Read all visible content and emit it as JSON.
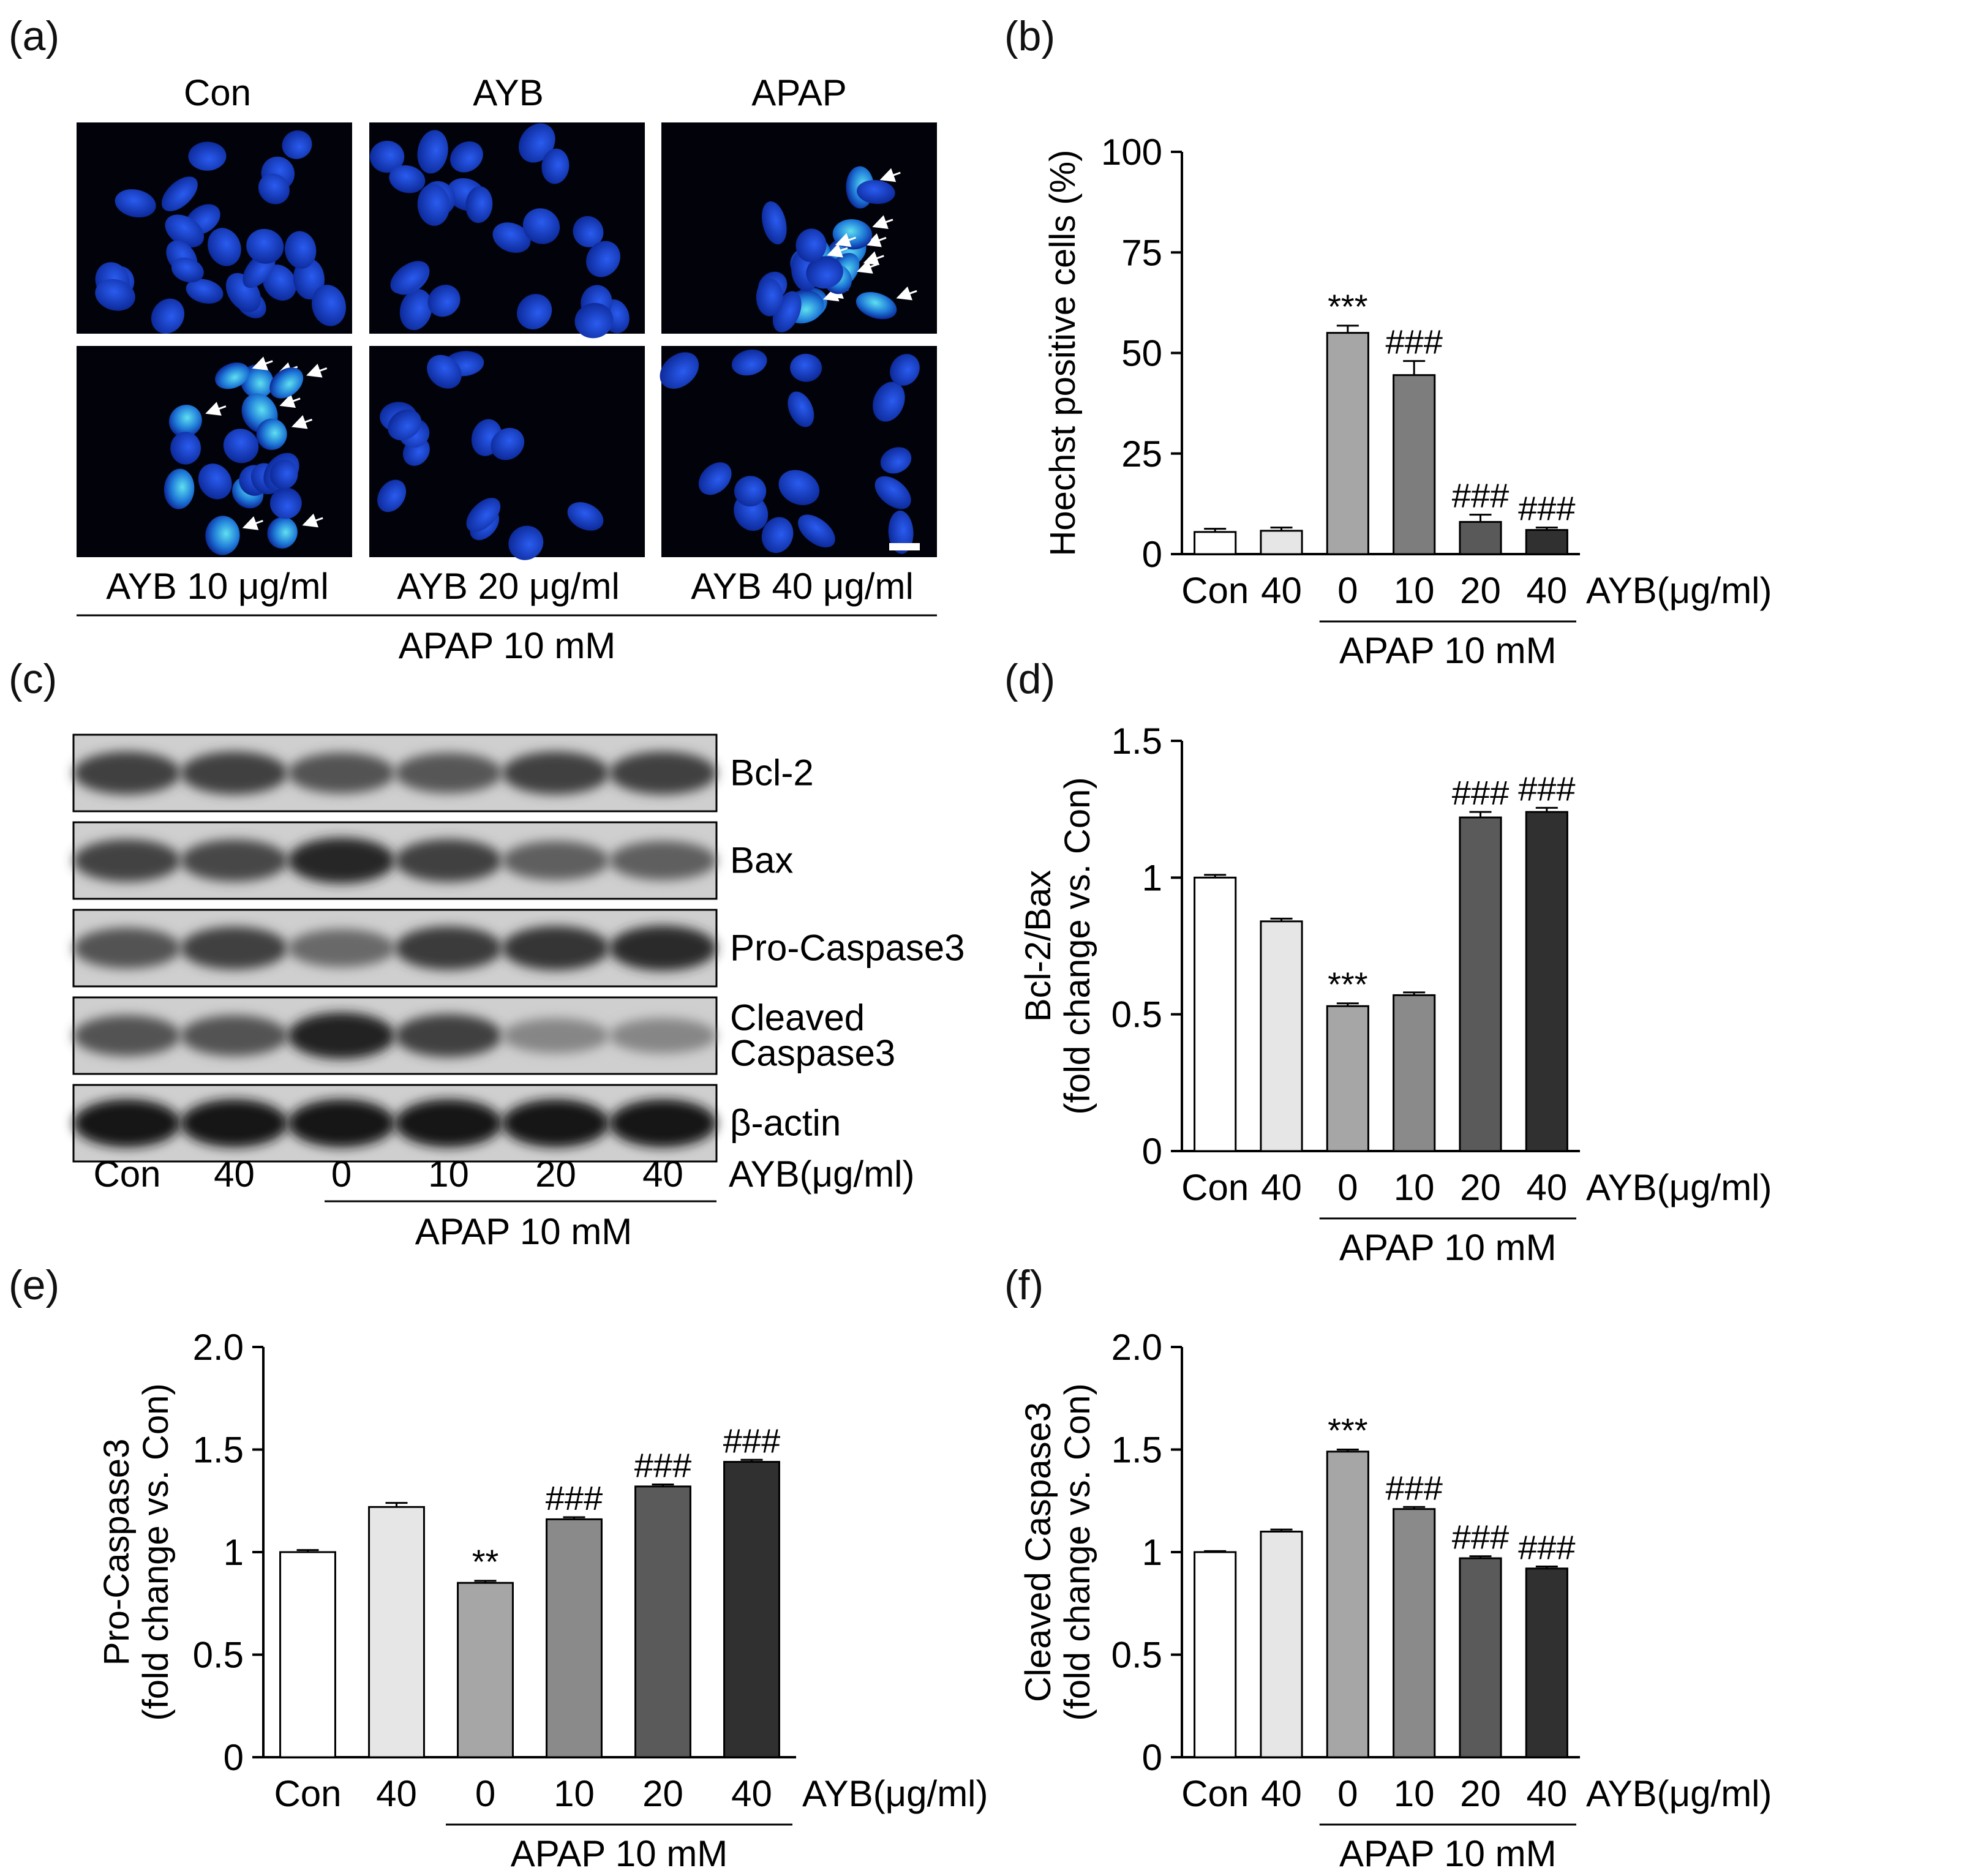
{
  "panel_labels": {
    "a": "(a)",
    "b": "(b)",
    "c": "(c)",
    "d": "(d)",
    "e": "(e)",
    "f": "(f)"
  },
  "panel_a": {
    "top_labels": [
      "Con",
      "AYB",
      "APAP"
    ],
    "bottom_labels": [
      "AYB 10 μg/ml",
      "AYB 20 μg/ml",
      "AYB 40 μg/ml"
    ],
    "group_label": "APAP 10 mM"
  },
  "panel_c": {
    "proteins": [
      "Bcl-2",
      "Bax",
      "Pro-Caspase3",
      "Cleaved\nCaspase3",
      "β-actin"
    ],
    "lanes": [
      "Con",
      "40",
      "0",
      "10",
      "20",
      "40"
    ],
    "dose_label": "AYB(μg/ml)",
    "group_label": "APAP 10 mM",
    "band_intensity": [
      [
        0.72,
        0.72,
        0.62,
        0.6,
        0.72,
        0.72
      ],
      [
        0.7,
        0.68,
        0.85,
        0.72,
        0.55,
        0.55
      ],
      [
        0.62,
        0.72,
        0.5,
        0.75,
        0.78,
        0.82
      ],
      [
        0.62,
        0.62,
        0.88,
        0.72,
        0.35,
        0.35
      ],
      [
        0.95,
        0.95,
        0.95,
        0.95,
        0.95,
        0.95
      ]
    ]
  },
  "chart_data": [
    {
      "id": "b",
      "type": "bar",
      "categories": [
        "Con",
        "40",
        "0",
        "10",
        "20",
        "40"
      ],
      "values": [
        5.5,
        5.8,
        55,
        44.5,
        8,
        6
      ],
      "errors": [
        0.8,
        0.8,
        1.8,
        3.5,
        1.8,
        0.6
      ],
      "annotations": [
        "",
        "",
        "***",
        "###",
        "###",
        "###"
      ],
      "colors": [
        "#ffffff",
        "#e6e6e6",
        "#a6a6a6",
        "#7d7d7d",
        "#595959",
        "#303030"
      ],
      "ylabel_lines": [
        "Hoechst positive cells (%)"
      ],
      "yticks": [
        "0",
        "25",
        "50",
        "75",
        "100"
      ],
      "ytick_values": [
        0,
        25,
        50,
        75,
        100
      ],
      "ylim": [
        0,
        100
      ],
      "dose_label": "AYB(μg/ml)",
      "group_label": "APAP 10 mM"
    },
    {
      "id": "d",
      "type": "bar",
      "categories": [
        "Con",
        "40",
        "0",
        "10",
        "20",
        "40"
      ],
      "values": [
        1.0,
        0.84,
        0.53,
        0.57,
        1.22,
        1.24
      ],
      "errors": [
        0.01,
        0.01,
        0.01,
        0.01,
        0.02,
        0.015
      ],
      "annotations": [
        "",
        "",
        "***",
        "",
        "###",
        "###"
      ],
      "colors": [
        "#ffffff",
        "#e6e6e6",
        "#a6a6a6",
        "#8a8a8a",
        "#5a5a5a",
        "#303030"
      ],
      "ylabel_lines": [
        "Bcl-2/Bax",
        "(fold change vs. Con)"
      ],
      "yticks": [
        "0",
        "0.5",
        "1",
        "1.5"
      ],
      "ytick_values": [
        0,
        0.5,
        1,
        1.5
      ],
      "ylim": [
        0,
        1.5
      ],
      "dose_label": "AYB(μg/ml)",
      "group_label": "APAP 10 mM"
    },
    {
      "id": "e",
      "type": "bar",
      "categories": [
        "Con",
        "40",
        "0",
        "10",
        "20",
        "40"
      ],
      "values": [
        1.0,
        1.22,
        0.85,
        1.16,
        1.32,
        1.44
      ],
      "errors": [
        0.01,
        0.02,
        0.01,
        0.01,
        0.01,
        0.01
      ],
      "annotations": [
        "",
        "",
        "**",
        "###",
        "###",
        "###"
      ],
      "colors": [
        "#ffffff",
        "#e6e6e6",
        "#a6a6a6",
        "#8a8a8a",
        "#5a5a5a",
        "#303030"
      ],
      "ylabel_lines": [
        "Pro-Caspase3",
        "(fold change vs. Con)"
      ],
      "yticks": [
        "0",
        "0.5",
        "1",
        "1.5",
        "2.0"
      ],
      "ytick_values": [
        0,
        0.5,
        1,
        1.5,
        2.0
      ],
      "ylim": [
        0,
        2.0
      ],
      "dose_label": "AYB(μg/ml)",
      "group_label": "APAP 10 mM"
    },
    {
      "id": "f",
      "type": "bar",
      "categories": [
        "Con",
        "40",
        "0",
        "10",
        "20",
        "40"
      ],
      "values": [
        1.0,
        1.1,
        1.49,
        1.21,
        0.97,
        0.92
      ],
      "errors": [
        0.005,
        0.01,
        0.01,
        0.01,
        0.01,
        0.01
      ],
      "annotations": [
        "",
        "",
        "***",
        "###",
        "###",
        "###"
      ],
      "colors": [
        "#ffffff",
        "#e6e6e6",
        "#a6a6a6",
        "#8a8a8a",
        "#5a5a5a",
        "#303030"
      ],
      "ylabel_lines": [
        "Cleaved Caspase3",
        "(fold change vs. Con)"
      ],
      "yticks": [
        "0",
        "0.5",
        "1",
        "1.5",
        "2.0"
      ],
      "ytick_values": [
        0,
        0.5,
        1,
        1.5,
        2.0
      ],
      "ylim": [
        0,
        2.0
      ],
      "dose_label": "AYB(μg/ml)",
      "group_label": "APAP 10 mM"
    }
  ]
}
